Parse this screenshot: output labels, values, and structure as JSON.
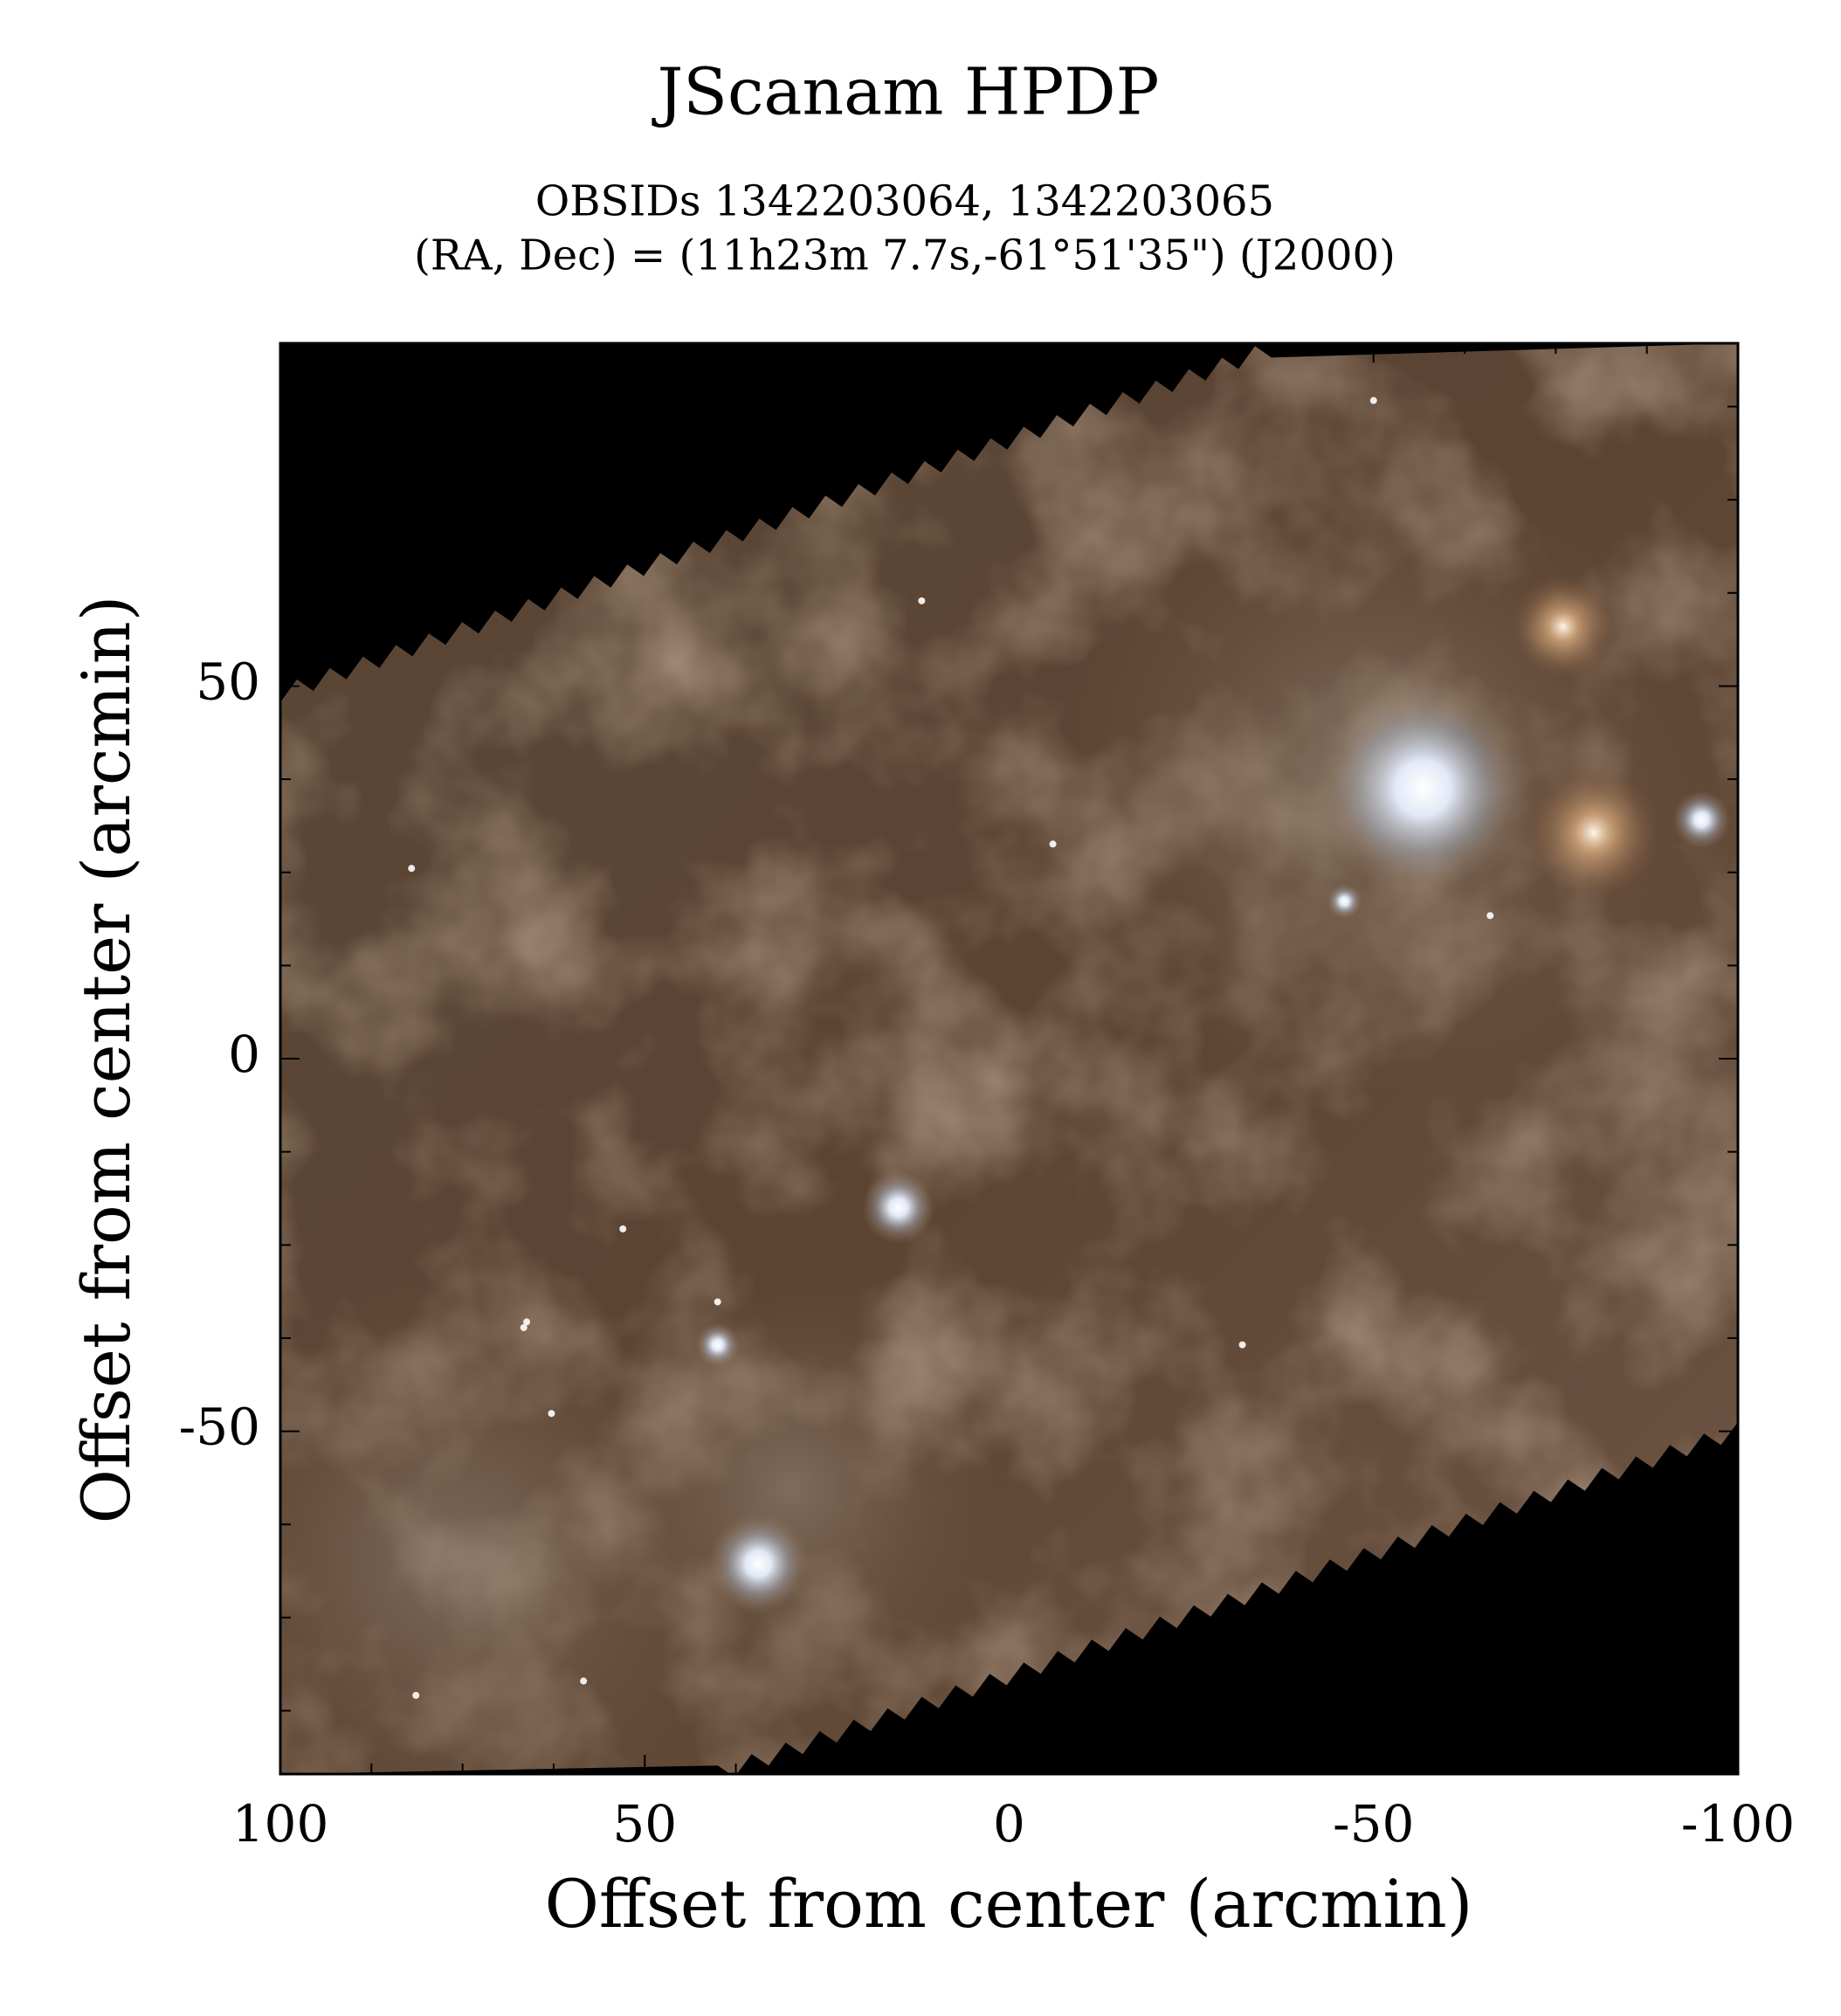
{
  "chart_data": {
    "type": "image",
    "title": "JScanam HPDP",
    "subtitle": [
      "OBSIDs 1342203064, 1342203065",
      "(RA, Dec) = (11h23m 7.7s,-61°51'35\") (J2000)"
    ],
    "xlabel": "Offset from center (arcmin)",
    "ylabel": "Offset from center (arcmin)",
    "xlim": [
      100,
      -100
    ],
    "ylim": [
      -96,
      96
    ],
    "xticks": [
      100,
      50,
      0,
      -50,
      -100
    ],
    "yticks": [
      -50,
      0,
      50
    ],
    "xminorticks": [
      87.5,
      75,
      62.5,
      37.5,
      25,
      12.5,
      -12.5,
      -25,
      -37.5,
      -62.5,
      -75,
      -87.5
    ],
    "yminorticks": [
      -87.5,
      -75,
      -62.5,
      -37.5,
      -25,
      -12.5,
      12.5,
      25,
      37.5,
      62.5,
      75,
      87.5
    ]
  }
}
